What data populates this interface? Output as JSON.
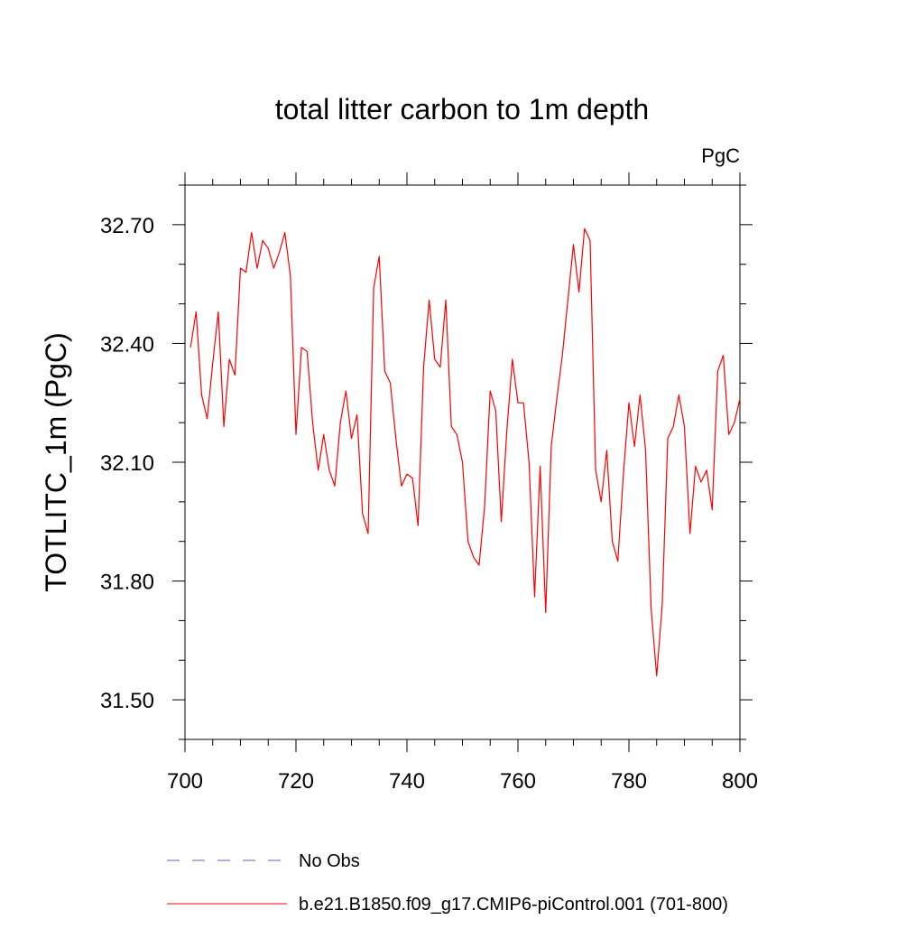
{
  "chart_data": {
    "type": "line",
    "title": "total litter carbon to 1m depth",
    "units_label": "PgC",
    "ylabel": "TOTLITC_1m  (PgC)",
    "xlabel": "",
    "xlim": [
      700,
      800
    ],
    "ylim": [
      31.4,
      32.8
    ],
    "x_ticks": [
      700,
      720,
      740,
      760,
      780,
      800
    ],
    "x_tick_labels": [
      "700",
      "720",
      "740",
      "760",
      "780",
      "800"
    ],
    "y_ticks": [
      31.5,
      31.8,
      32.1,
      32.4,
      32.7
    ],
    "y_tick_labels": [
      "31.50",
      "31.80",
      "32.10",
      "32.40",
      "32.70"
    ],
    "grid": false,
    "legend_position": "bottom",
    "series": [
      {
        "name": "No Obs",
        "color": "#6a5acd",
        "dash": "dashed",
        "x": [],
        "values": []
      },
      {
        "name": "b.e21.B1850.f09_g17.CMIP6-piControl.001 (701-800)",
        "color": "#ff0000",
        "dash": "solid",
        "x": [
          701,
          702,
          703,
          704,
          705,
          706,
          707,
          708,
          709,
          710,
          711,
          712,
          713,
          714,
          715,
          716,
          717,
          718,
          719,
          720,
          721,
          722,
          723,
          724,
          725,
          726,
          727,
          728,
          729,
          730,
          731,
          732,
          733,
          734,
          735,
          736,
          737,
          738,
          739,
          740,
          741,
          742,
          743,
          744,
          745,
          746,
          747,
          748,
          749,
          750,
          751,
          752,
          753,
          754,
          755,
          756,
          757,
          758,
          759,
          760,
          761,
          762,
          763,
          764,
          765,
          766,
          767,
          768,
          769,
          770,
          771,
          772,
          773,
          774,
          775,
          776,
          777,
          778,
          779,
          780,
          781,
          782,
          783,
          784,
          785,
          786,
          787,
          788,
          789,
          790,
          791,
          792,
          793,
          794,
          795,
          796,
          797,
          798,
          799,
          800
        ],
        "values": [
          32.39,
          32.48,
          32.27,
          32.21,
          32.35,
          32.48,
          32.19,
          32.36,
          32.32,
          32.59,
          32.58,
          32.68,
          32.59,
          32.66,
          32.64,
          32.59,
          32.63,
          32.68,
          32.57,
          32.17,
          32.39,
          32.38,
          32.2,
          32.08,
          32.17,
          32.08,
          32.04,
          32.2,
          32.28,
          32.16,
          32.22,
          31.97,
          31.92,
          32.54,
          32.62,
          32.33,
          32.3,
          32.16,
          32.04,
          32.07,
          32.06,
          31.94,
          32.34,
          32.51,
          32.36,
          32.34,
          32.51,
          32.19,
          32.17,
          32.1,
          31.9,
          31.86,
          31.84,
          31.99,
          32.28,
          32.23,
          31.95,
          32.18,
          32.36,
          32.25,
          32.25,
          32.1,
          31.76,
          32.09,
          31.72,
          32.14,
          32.26,
          32.37,
          32.51,
          32.65,
          32.53,
          32.69,
          32.66,
          32.08,
          32.0,
          32.13,
          31.9,
          31.85,
          32.07,
          32.25,
          32.14,
          32.27,
          32.13,
          31.73,
          31.56,
          31.74,
          32.16,
          32.19,
          32.27,
          32.19,
          31.92,
          32.09,
          32.05,
          32.08,
          31.98,
          32.33,
          32.37,
          32.17,
          32.2,
          32.26
        ]
      }
    ]
  }
}
